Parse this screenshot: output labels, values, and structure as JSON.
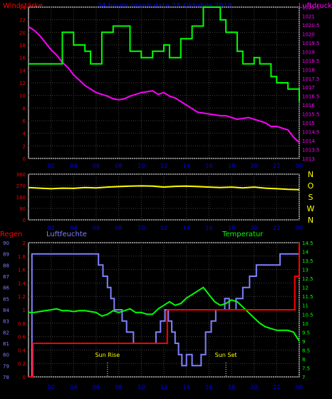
{
  "header": {
    "left_title": "Windstärke",
    "center_title": "24 hours graph data   25 Oktober 2018",
    "right_title": "Luftdruck"
  },
  "colors": {
    "wind": "#00ff00",
    "pressure": "#ff00ff",
    "direction": "#ffff00",
    "rain": "#ff0000",
    "humidity": "#8080ff",
    "temperature": "#00ff00",
    "grid": "#404040",
    "frame": "#ffffff",
    "title_blue": "#0000ff",
    "title_red": "#ff0000"
  },
  "chart_data": [
    {
      "type": "line",
      "name": "wind-pressure",
      "x_ticks": [
        "02",
        "04",
        "06",
        "08",
        "10",
        "12",
        "14",
        "16",
        "18",
        "20",
        "22",
        "00"
      ],
      "xlim": [
        0,
        24
      ],
      "left_axis": {
        "label": "Windstärke",
        "ylim": [
          0,
          24
        ],
        "ticks": [
          "0",
          "2",
          "4",
          "6",
          "8",
          "10",
          "12",
          "14",
          "16",
          "18",
          "20",
          "22",
          "24"
        ]
      },
      "right_axis": {
        "label": "Luftdruck",
        "ylim": [
          1013,
          1021.5
        ],
        "ticks": [
          "1013",
          "1013.5",
          "1014",
          "1014.5",
          "1015",
          "1015.5",
          "1016",
          "1016.5",
          "1017",
          "1017.5",
          "1018",
          "1018.5",
          "1019",
          "1019.5",
          "1020",
          "1020.5",
          "1021",
          "1021.5"
        ]
      },
      "series": [
        {
          "axis": "left",
          "step": true,
          "x": [
            0,
            3,
            4,
            5,
            5.5,
            6.5,
            7.5,
            8.5,
            9,
            10,
            11,
            12,
            12.5,
            13.5,
            14.5,
            15.5,
            16,
            17,
            17.5,
            18.5,
            19,
            20,
            20.5,
            21.5,
            22,
            23,
            24
          ],
          "values": [
            15,
            20,
            18,
            17,
            15,
            20,
            21,
            21,
            17,
            16,
            17,
            18,
            16,
            19,
            21,
            24,
            24,
            22,
            20,
            17,
            15,
            16,
            15,
            13,
            12,
            11,
            9
          ]
        },
        {
          "axis": "right",
          "step": false,
          "x": [
            0,
            0.5,
            1,
            1.5,
            2,
            2.5,
            3,
            3.5,
            4,
            4.5,
            5,
            5.5,
            6,
            6.5,
            7,
            7.5,
            8,
            8.5,
            9,
            9.5,
            10,
            10.5,
            11,
            11.5,
            12,
            12.5,
            13,
            13.5,
            14,
            14.5,
            15,
            15.5,
            16,
            16.5,
            17,
            17.5,
            18,
            18.5,
            19,
            19.5,
            20,
            20.5,
            21,
            21.5,
            22,
            22.5,
            23,
            23.5,
            24
          ],
          "values": [
            1020.4,
            1020.2,
            1019.9,
            1019.5,
            1019.1,
            1018.8,
            1018.4,
            1018.1,
            1017.7,
            1017.4,
            1017.1,
            1016.9,
            1016.7,
            1016.6,
            1016.5,
            1016.35,
            1016.3,
            1016.35,
            1016.5,
            1016.6,
            1016.7,
            1016.75,
            1016.8,
            1016.6,
            1016.7,
            1016.5,
            1016.4,
            1016.2,
            1016.0,
            1015.8,
            1015.6,
            1015.55,
            1015.5,
            1015.45,
            1015.4,
            1015.4,
            1015.3,
            1015.2,
            1015.25,
            1015.3,
            1015.2,
            1015.1,
            1015.0,
            1014.8,
            1014.8,
            1014.7,
            1014.6,
            1014.2,
            1013.9
          ]
        }
      ]
    },
    {
      "type": "line",
      "name": "wind-direction",
      "x_ticks": [
        "02",
        "04",
        "06",
        "08",
        "10",
        "12",
        "14",
        "16",
        "18",
        "20",
        "22",
        "00"
      ],
      "xlim": [
        0,
        24
      ],
      "left_axis": {
        "ylim": [
          0,
          360
        ],
        "ticks": [
          "0",
          "90",
          "180",
          "270",
          "360"
        ]
      },
      "right_axis": {
        "ticks": [
          "N",
          "W",
          "S",
          "O",
          "N"
        ]
      },
      "series": [
        {
          "x": [
            0,
            1,
            2,
            3,
            4,
            5,
            6,
            7,
            8,
            9,
            10,
            11,
            12,
            13,
            14,
            15,
            16,
            17,
            18,
            19,
            20,
            21,
            22,
            23,
            24
          ],
          "values": [
            255,
            250,
            245,
            250,
            248,
            255,
            252,
            258,
            262,
            266,
            268,
            266,
            258,
            264,
            266,
            262,
            258,
            254,
            258,
            252,
            258,
            250,
            245,
            240,
            238
          ]
        }
      ]
    },
    {
      "type": "line",
      "name": "rain-humidity-temperature",
      "x_ticks": [
        "02",
        "04",
        "06",
        "08",
        "10",
        "12",
        "14",
        "16",
        "18",
        "20",
        "22",
        "00"
      ],
      "xlim": [
        0,
        24
      ],
      "axes": [
        {
          "label": "Regen",
          "ylim": [
            0,
            2
          ],
          "ticks": [
            "0",
            "0.2",
            "0.4",
            "0.6",
            "0.8",
            "1",
            "1.2",
            "1.4",
            "1.6",
            "1.8",
            "2"
          ]
        },
        {
          "label": "Luftfeuchte",
          "ylim": [
            78,
            90
          ],
          "ticks": [
            "78",
            "79",
            "80",
            "81",
            "82",
            "83",
            "84",
            "85",
            "86",
            "87",
            "88",
            "89",
            "90"
          ]
        },
        {
          "label": "Temperatur",
          "ylim": [
            7,
            14.5
          ],
          "ticks": [
            "7",
            "7.5",
            "8",
            "8.5",
            "9",
            "9.5",
            "10",
            "10.5",
            "11",
            "11.5",
            "12",
            "12.5",
            "13",
            "13.5",
            "14",
            "14.5"
          ]
        }
      ],
      "annotations": [
        {
          "text": "Sun Rise",
          "x": 7.0
        },
        {
          "text": "Sun Set",
          "x": 17.5
        }
      ],
      "series": [
        {
          "axis": 0,
          "step": true,
          "x": [
            0,
            0.4,
            11.6,
            12.3,
            23.2,
            23.6,
            24
          ],
          "values": [
            0,
            0.5,
            0.5,
            1.0,
            1.0,
            1.5,
            2.0
          ]
        },
        {
          "axis": 1,
          "step": true,
          "x": [
            0,
            0.3,
            5.7,
            6.2,
            6.6,
            7.0,
            7.3,
            7.6,
            8.3,
            8.7,
            9.3,
            11.3,
            11.7,
            12.1,
            12.4,
            12.7,
            13.0,
            13.3,
            13.6,
            14.0,
            14.5,
            15.3,
            15.7,
            16.2,
            16.6,
            17.0,
            17.4,
            17.8,
            18.4,
            19.0,
            19.6,
            20.2,
            20.8,
            22.3,
            24
          ],
          "values": [
            78,
            89,
            89,
            88,
            87,
            86,
            85,
            84,
            83,
            82,
            81,
            82,
            83,
            84,
            83,
            82,
            81,
            80,
            79,
            80,
            79,
            80,
            82,
            83,
            84,
            84,
            85,
            84,
            85,
            86,
            87,
            88,
            88,
            89,
            89
          ]
        },
        {
          "axis": 2,
          "step": false,
          "x": [
            0,
            0.5,
            1,
            1.5,
            2,
            2.5,
            3,
            3.5,
            4,
            4.5,
            5,
            5.5,
            6,
            6.5,
            7,
            7.5,
            8,
            8.5,
            9,
            9.5,
            10,
            10.5,
            11,
            11.5,
            12,
            12.5,
            13,
            13.5,
            14,
            14.5,
            15,
            15.5,
            16,
            16.5,
            17,
            17.5,
            18,
            18.5,
            19,
            19.5,
            20,
            20.5,
            21,
            21.5,
            22,
            22.5,
            23,
            23.5,
            24
          ],
          "values": [
            10.6,
            10.6,
            10.65,
            10.7,
            10.75,
            10.8,
            10.7,
            10.7,
            10.65,
            10.7,
            10.7,
            10.65,
            10.6,
            10.4,
            10.5,
            10.7,
            10.6,
            10.7,
            10.8,
            10.6,
            10.6,
            10.5,
            10.5,
            10.8,
            11.0,
            11.2,
            11.0,
            11.1,
            11.4,
            11.6,
            11.8,
            12.0,
            11.6,
            11.2,
            11.0,
            11.1,
            11.3,
            11.2,
            10.9,
            10.6,
            10.3,
            10.0,
            9.8,
            9.7,
            9.6,
            9.6,
            9.6,
            9.5,
            9.0
          ]
        }
      ]
    }
  ]
}
